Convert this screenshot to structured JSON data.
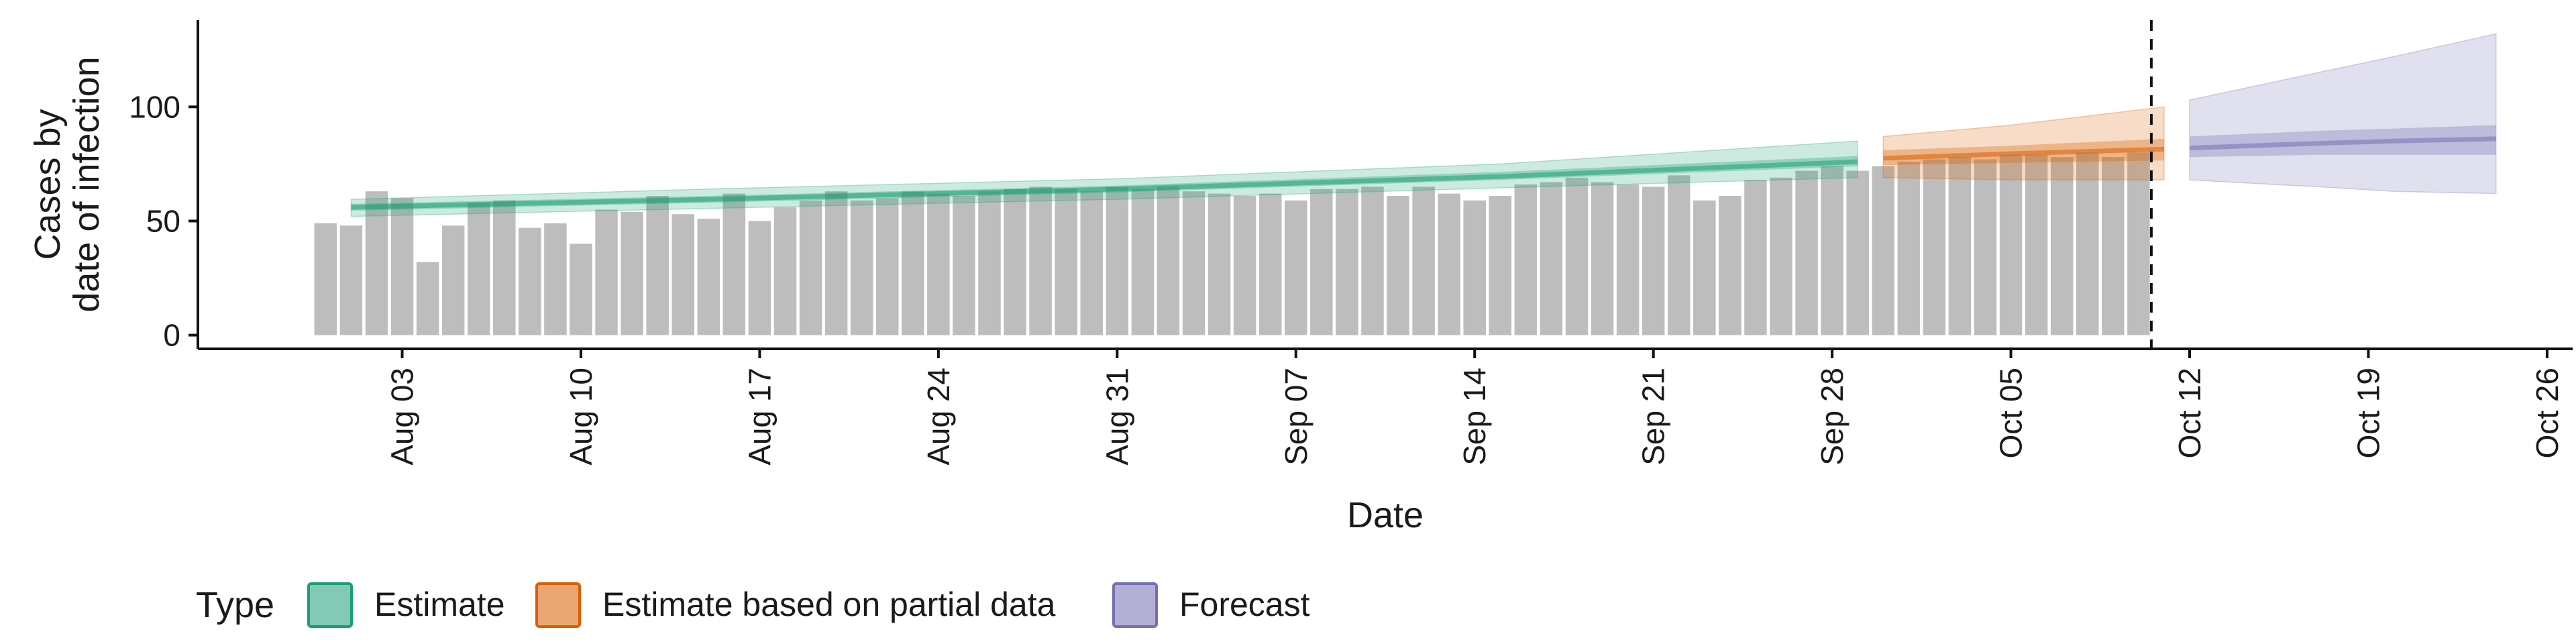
{
  "chart_data": {
    "type": "bar",
    "xlabel": "Date",
    "ylabel": "Cases by\ndate of infection",
    "ylim": [
      -6,
      138
    ],
    "yticks": [
      0,
      50,
      100
    ],
    "xlim": [
      "2020-07-26",
      "2020-10-27"
    ],
    "xticks": [
      "2020-08-03",
      "2020-08-10",
      "2020-08-17",
      "2020-08-24",
      "2020-08-31",
      "2020-09-07",
      "2020-09-14",
      "2020-09-21",
      "2020-09-28",
      "2020-10-05",
      "2020-10-12",
      "2020-10-19",
      "2020-10-26"
    ],
    "xtick_labels": [
      "Aug 03",
      "Aug 10",
      "Aug 17",
      "Aug 24",
      "Aug 31",
      "Sep 07",
      "Sep 14",
      "Sep 21",
      "Sep 28",
      "Oct 05",
      "Oct 12",
      "Oct 19",
      "Oct 26"
    ],
    "bar_dates": [
      "2020-07-31",
      "2020-08-01",
      "2020-08-02",
      "2020-08-03",
      "2020-08-04",
      "2020-08-05",
      "2020-08-06",
      "2020-08-07",
      "2020-08-08",
      "2020-08-09",
      "2020-08-10",
      "2020-08-11",
      "2020-08-12",
      "2020-08-13",
      "2020-08-14",
      "2020-08-15",
      "2020-08-16",
      "2020-08-17",
      "2020-08-18",
      "2020-08-19",
      "2020-08-20",
      "2020-08-21",
      "2020-08-22",
      "2020-08-23",
      "2020-08-24",
      "2020-08-25",
      "2020-08-26",
      "2020-08-27",
      "2020-08-28",
      "2020-08-29",
      "2020-08-30",
      "2020-08-31",
      "2020-09-01",
      "2020-09-02",
      "2020-09-03",
      "2020-09-04",
      "2020-09-05",
      "2020-09-06",
      "2020-09-07",
      "2020-09-08",
      "2020-09-09",
      "2020-09-10",
      "2020-09-11",
      "2020-09-12",
      "2020-09-13",
      "2020-09-14",
      "2020-09-15",
      "2020-09-16",
      "2020-09-17",
      "2020-09-18",
      "2020-09-19",
      "2020-09-20",
      "2020-09-21",
      "2020-09-22",
      "2020-09-23",
      "2020-09-24",
      "2020-09-25",
      "2020-09-26",
      "2020-09-27",
      "2020-09-28",
      "2020-09-29",
      "2020-09-30",
      "2020-10-01",
      "2020-10-02",
      "2020-10-03",
      "2020-10-04",
      "2020-10-05",
      "2020-10-06",
      "2020-10-07",
      "2020-10-08",
      "2020-10-09",
      "2020-10-10"
    ],
    "bar_values": [
      49,
      48,
      63,
      60,
      32,
      48,
      58,
      59,
      47,
      49,
      40,
      55,
      54,
      61,
      53,
      51,
      62,
      50,
      56,
      59,
      63,
      59,
      60,
      63,
      62,
      61,
      63,
      64,
      65,
      64,
      63,
      65,
      64,
      65,
      63,
      62,
      61,
      62,
      59,
      64,
      64,
      65,
      61,
      65,
      62,
      59,
      61,
      66,
      67,
      69,
      67,
      66,
      65,
      70,
      59,
      61,
      68,
      69,
      72,
      74,
      72,
      74,
      76,
      77,
      78,
      77,
      79,
      79,
      78,
      80,
      78,
      80
    ],
    "bar_color": "#bdbdbd",
    "vline_date": "2020-10-11",
    "series": [
      {
        "name": "Estimate",
        "color": "#1b9e77",
        "dates": [
          "2020-08-01",
          "2020-08-15",
          "2020-08-31",
          "2020-09-15",
          "2020-09-29"
        ],
        "median": [
          56,
          59.5,
          64,
          69.5,
          76
        ],
        "inner": [
          [
            54.5,
            57.5
          ],
          [
            58,
            61
          ],
          [
            62.5,
            65.5
          ],
          [
            68,
            71.5
          ],
          [
            74,
            78.5
          ]
        ],
        "outer": [
          [
            52,
            59.5
          ],
          [
            55.5,
            64
          ],
          [
            59.5,
            68.5
          ],
          [
            64.5,
            75
          ],
          [
            69,
            85
          ]
        ]
      },
      {
        "name": "Estimate based on partial data",
        "color": "#d95f02",
        "dates": [
          "2020-09-30",
          "2020-10-05",
          "2020-10-11"
        ],
        "median": [
          77.5,
          79.5,
          81.5
        ],
        "inner": [
          [
            74.5,
            81
          ],
          [
            75.5,
            83
          ],
          [
            76.5,
            86
          ]
        ],
        "outer": [
          [
            69,
            87
          ],
          [
            68,
            92
          ],
          [
            68,
            100
          ]
        ]
      },
      {
        "name": "Forecast",
        "color": "#7570b3",
        "dates": [
          "2020-10-12",
          "2020-10-17",
          "2020-10-20",
          "2020-10-24"
        ],
        "median": [
          82,
          84,
          85,
          86
        ],
        "inner": [
          [
            78,
            87
          ],
          [
            79,
            89.5
          ],
          [
            79,
            90.5
          ],
          [
            79,
            92
          ]
        ],
        "outer": [
          [
            68,
            103
          ],
          [
            65,
            115
          ],
          [
            63,
            122
          ],
          [
            62,
            132
          ]
        ]
      }
    ],
    "legend_title": "Type",
    "legend_position": "bottom-left",
    "grid": false
  }
}
